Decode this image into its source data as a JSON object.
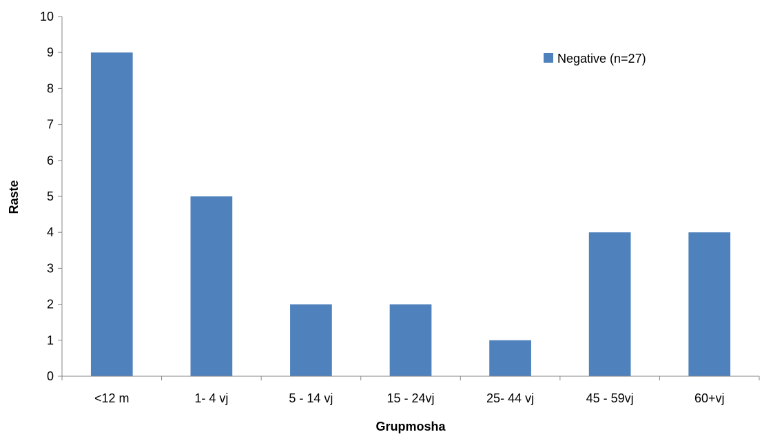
{
  "chart_data": {
    "type": "bar",
    "categories": [
      "<12 m",
      "1- 4 vj",
      "5 - 14 vj",
      "15 - 24vj",
      "25- 44 vj",
      "45 - 59vj",
      "60+vj"
    ],
    "series": [
      {
        "name": "Negative (n=27)",
        "values": [
          9,
          5,
          2,
          2,
          1,
          4,
          4
        ],
        "color": "#4F81BD"
      }
    ],
    "title": "",
    "xlabel": "Grupmosha",
    "ylabel": "Raste",
    "ylim": [
      0,
      10
    ],
    "yticks": [
      0,
      1,
      2,
      3,
      4,
      5,
      6,
      7,
      8,
      9,
      10
    ],
    "grid": false,
    "legend_position": "top-right",
    "axis_color": "#868686"
  }
}
